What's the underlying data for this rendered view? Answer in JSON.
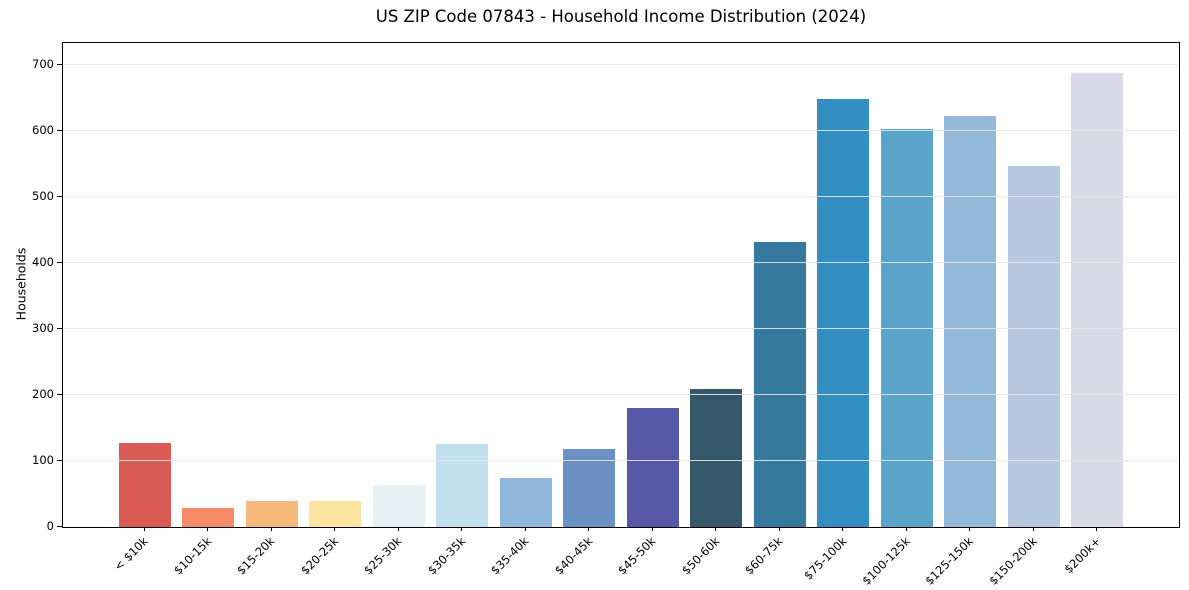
{
  "chart_data": {
    "type": "bar",
    "title": "US ZIP Code 07843 - Household Income Distribution (2024)",
    "xlabel": "",
    "ylabel": "Households",
    "categories": [
      "< $10k",
      "$10-15k",
      "$15-20k",
      "$20-25k",
      "$25-30k",
      "$30-35k",
      "$35-40k",
      "$40-45k",
      "$45-50k",
      "$50-60k",
      "$60-75k",
      "$75-100k",
      "$100-125k",
      "$125-150k",
      "$150-200k",
      "$200k+"
    ],
    "values": [
      127,
      29,
      40,
      39,
      63,
      125,
      74,
      118,
      180,
      209,
      432,
      648,
      603,
      622,
      547,
      688
    ],
    "bar_colors": [
      "#d95b53",
      "#f48a68",
      "#f7ba7d",
      "#fbe3a2",
      "#e5f1f5",
      "#c1e0ed",
      "#8fb8dc",
      "#6b91c4",
      "#5757a8",
      "#35596b",
      "#35799d",
      "#338ec2",
      "#5ba4c9",
      "#93b8d8",
      "#b6c8e0",
      "#d8dae7"
    ],
    "yticks": [
      0,
      100,
      200,
      300,
      400,
      500,
      600,
      700
    ],
    "ylim": [
      0,
      733
    ],
    "grid": "horizontal",
    "legend": "none",
    "background": "#ffffff",
    "spine_color": "#000000",
    "grid_color": "#e7e7e7",
    "text_color": "#000000"
  }
}
